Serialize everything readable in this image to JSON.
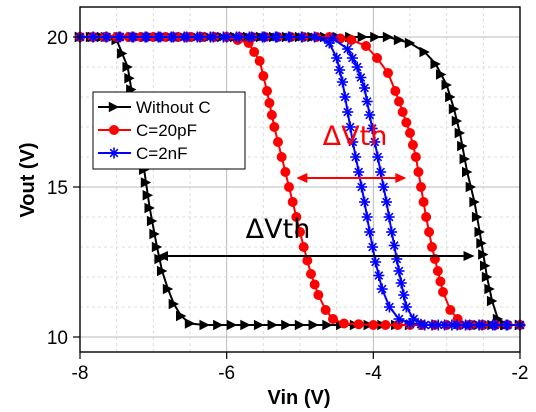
{
  "chart_data": {
    "type": "line",
    "xlabel": "Vin (V)",
    "ylabel": "Vout (V)",
    "xlim": [
      -8,
      -2
    ],
    "ylim": [
      9.5,
      21
    ],
    "xticks": [
      -8,
      -6,
      -4,
      -2
    ],
    "yticks": [
      10,
      15,
      20
    ],
    "grid": true,
    "legend_position": "left",
    "series": [
      {
        "name": "Without C",
        "color": "#000000",
        "marker": "triangle-right",
        "points": [
          [
            -8.0,
            20
          ],
          [
            -7.7,
            20
          ],
          [
            -7.5,
            19.9
          ],
          [
            -7.35,
            19.0
          ],
          [
            -7.25,
            17.5
          ],
          [
            -7.15,
            16.0
          ],
          [
            -7.05,
            14.3
          ],
          [
            -6.95,
            13.0
          ],
          [
            -6.88,
            12.2
          ],
          [
            -6.8,
            11.6
          ],
          [
            -6.72,
            11.1
          ],
          [
            -6.62,
            10.7
          ],
          [
            -6.5,
            10.45
          ],
          [
            -6.3,
            10.4
          ],
          [
            -5.0,
            10.4
          ],
          [
            -3.5,
            10.4
          ],
          [
            -2.0,
            10.4
          ]
        ],
        "reverse_points": [
          [
            -2.0,
            10.4
          ],
          [
            -2.2,
            10.4
          ],
          [
            -2.3,
            10.6
          ],
          [
            -2.38,
            11.2
          ],
          [
            -2.45,
            12.0
          ],
          [
            -2.55,
            13.5
          ],
          [
            -2.62,
            14.5
          ],
          [
            -2.72,
            15.5
          ],
          [
            -2.82,
            16.8
          ],
          [
            -2.9,
            17.6
          ],
          [
            -3.0,
            18.4
          ],
          [
            -3.15,
            19.1
          ],
          [
            -3.3,
            19.5
          ],
          [
            -3.5,
            19.8
          ],
          [
            -3.8,
            20.0
          ],
          [
            -5.0,
            20.0
          ],
          [
            -8.0,
            20.0
          ]
        ]
      },
      {
        "name": "C=20pF",
        "color": "#ff0000",
        "marker": "circle",
        "points": [
          [
            -8.0,
            20
          ],
          [
            -7.0,
            20
          ],
          [
            -6.0,
            20
          ],
          [
            -5.7,
            19.8
          ],
          [
            -5.55,
            19.2
          ],
          [
            -5.45,
            18.2
          ],
          [
            -5.35,
            17.0
          ],
          [
            -5.25,
            16.0
          ],
          [
            -5.15,
            15.0
          ],
          [
            -5.05,
            14.0
          ],
          [
            -4.95,
            13.0
          ],
          [
            -4.85,
            12.1
          ],
          [
            -4.75,
            11.4
          ],
          [
            -4.65,
            10.9
          ],
          [
            -4.55,
            10.6
          ],
          [
            -4.4,
            10.45
          ],
          [
            -4.0,
            10.4
          ],
          [
            -3.0,
            10.4
          ],
          [
            -2.0,
            10.4
          ]
        ],
        "reverse_points": [
          [
            -2.0,
            10.4
          ],
          [
            -2.7,
            10.4
          ],
          [
            -2.85,
            10.6
          ],
          [
            -2.95,
            10.9
          ],
          [
            -3.05,
            11.5
          ],
          [
            -3.12,
            12.2
          ],
          [
            -3.2,
            13.0
          ],
          [
            -3.28,
            14.0
          ],
          [
            -3.35,
            15.0
          ],
          [
            -3.42,
            16.0
          ],
          [
            -3.5,
            16.8
          ],
          [
            -3.6,
            17.5
          ],
          [
            -3.7,
            18.2
          ],
          [
            -3.8,
            18.8
          ],
          [
            -3.95,
            19.3
          ],
          [
            -4.1,
            19.7
          ],
          [
            -4.3,
            19.9
          ],
          [
            -4.6,
            20.0
          ],
          [
            -6.0,
            20.0
          ],
          [
            -8.0,
            20.0
          ]
        ]
      },
      {
        "name": "C=2nF",
        "color": "#0000ff",
        "marker": "asterisk",
        "points": [
          [
            -8.0,
            20
          ],
          [
            -6.0,
            20
          ],
          [
            -4.8,
            20
          ],
          [
            -4.6,
            19.8
          ],
          [
            -4.5,
            19.3
          ],
          [
            -4.42,
            18.5
          ],
          [
            -4.35,
            17.5
          ],
          [
            -4.28,
            16.5
          ],
          [
            -4.2,
            15.5
          ],
          [
            -4.12,
            14.5
          ],
          [
            -4.05,
            13.5
          ],
          [
            -3.97,
            12.5
          ],
          [
            -3.88,
            11.6
          ],
          [
            -3.78,
            11.0
          ],
          [
            -3.65,
            10.6
          ],
          [
            -3.5,
            10.45
          ],
          [
            -3.2,
            10.4
          ],
          [
            -2.0,
            10.4
          ]
        ],
        "reverse_points": [
          [
            -2.0,
            10.4
          ],
          [
            -3.3,
            10.4
          ],
          [
            -3.45,
            10.6
          ],
          [
            -3.55,
            11.0
          ],
          [
            -3.62,
            11.8
          ],
          [
            -3.68,
            12.6
          ],
          [
            -3.75,
            13.5
          ],
          [
            -3.82,
            14.5
          ],
          [
            -3.9,
            15.5
          ],
          [
            -3.98,
            16.5
          ],
          [
            -4.05,
            17.4
          ],
          [
            -4.12,
            18.3
          ],
          [
            -4.22,
            19.0
          ],
          [
            -4.35,
            19.6
          ],
          [
            -4.55,
            19.95
          ],
          [
            -4.8,
            20.0
          ],
          [
            -8.0,
            20.0
          ]
        ]
      }
    ],
    "annotations": [
      {
        "text": "ΔVth",
        "color": "#000000",
        "x_from": -6.95,
        "x_to": -2.62,
        "y": 12.7,
        "label_x": -5.3,
        "label_y": 13.6
      },
      {
        "text": "ΔVth",
        "color": "#ff0000",
        "x_from": -5.05,
        "x_to": -3.55,
        "y": 15.3,
        "label_x": -4.25,
        "label_y": 16.7
      }
    ]
  }
}
